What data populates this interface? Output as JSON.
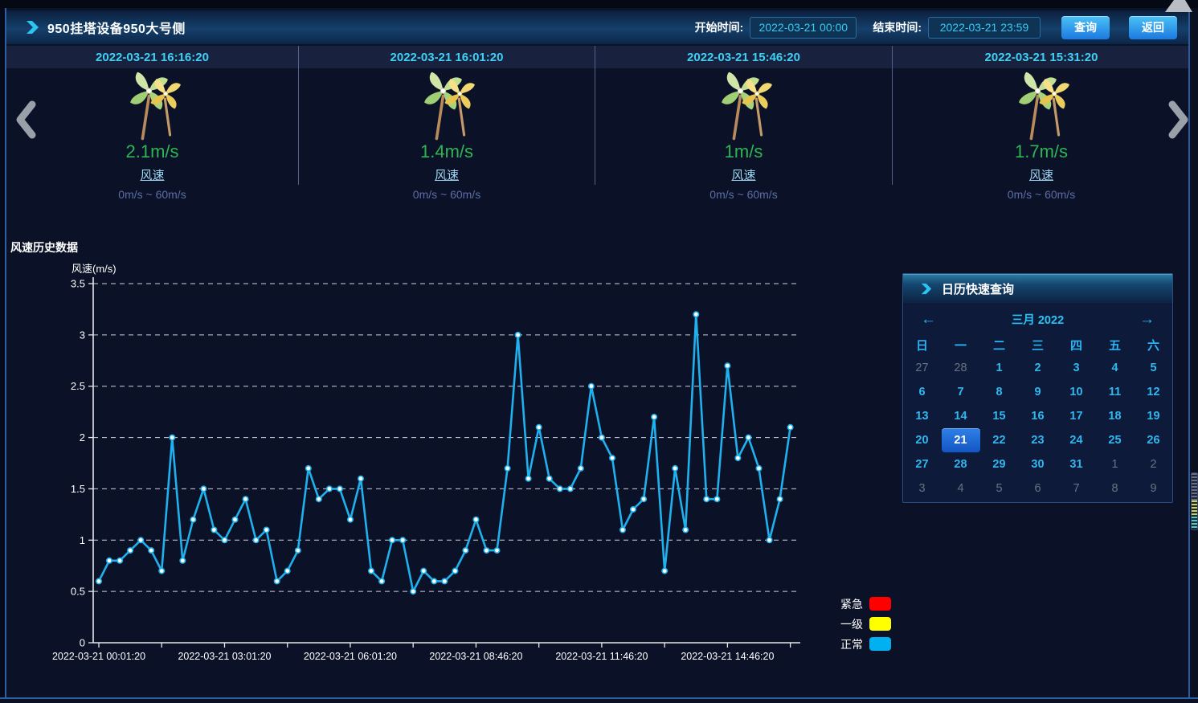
{
  "header": {
    "title": "950挂塔设备950大号侧",
    "start_label": "开始时间:",
    "start_value": "2022-03-21 00:00",
    "end_label": "结束时间:",
    "end_value": "2022-03-21 23:59",
    "query_button": "查询",
    "back_button": "返回"
  },
  "sensors": {
    "label": "风速",
    "range": "0m/s ~ 60m/s",
    "items": [
      {
        "timestamp": "2022-03-21 16:16:20",
        "value": "2.1m/s"
      },
      {
        "timestamp": "2022-03-21 16:01:20",
        "value": "1.4m/s"
      },
      {
        "timestamp": "2022-03-21 15:46:20",
        "value": "1m/s"
      },
      {
        "timestamp": "2022-03-21 15:31:20",
        "value": "1.7m/s"
      }
    ]
  },
  "chart_data": {
    "type": "line",
    "title": "风速历史数据",
    "ylabel": "风速(m/s)",
    "ylim": [
      0,
      3.5
    ],
    "ytick_step": 0.5,
    "grid": "horizontal-dashed",
    "line_color": "#1fb0ee",
    "marker": "white-dot",
    "legend_position": "bottom-right-outside",
    "x_tick_labels": [
      "2022-03-21 00:01:20",
      "2022-03-21 03:01:20",
      "2022-03-21 06:01:20",
      "2022-03-21 08:46:20",
      "2022-03-21 11:46:20",
      "2022-03-21 14:46:20"
    ],
    "x_tick_indices": [
      0,
      12,
      24,
      36,
      48,
      60
    ],
    "values": [
      0.6,
      0.8,
      0.8,
      0.9,
      1.0,
      0.9,
      0.7,
      2.0,
      0.8,
      1.2,
      1.5,
      1.1,
      1.0,
      1.2,
      1.4,
      1.0,
      1.1,
      0.6,
      0.7,
      0.9,
      1.7,
      1.4,
      1.5,
      1.5,
      1.2,
      1.6,
      0.7,
      0.6,
      1.0,
      1.0,
      0.5,
      0.7,
      0.6,
      0.6,
      0.7,
      0.9,
      1.2,
      0.9,
      0.9,
      1.7,
      3.0,
      1.6,
      2.1,
      1.6,
      1.5,
      1.5,
      1.7,
      2.5,
      2.0,
      1.8,
      1.1,
      1.3,
      1.4,
      2.2,
      0.7,
      1.7,
      1.1,
      3.2,
      1.4,
      1.4,
      2.7,
      1.8,
      2.0,
      1.7,
      1.0,
      1.4,
      2.1
    ]
  },
  "legend": {
    "items": [
      {
        "label": "紧急",
        "color": "#ff0000"
      },
      {
        "label": "一级",
        "color": "#ffff00"
      },
      {
        "label": "正常",
        "color": "#00b0f0"
      }
    ]
  },
  "calendar": {
    "title": "日历快速查询",
    "month_title": "三月 2022",
    "prev_arrow": "←",
    "next_arrow": "→",
    "weekdays": [
      "日",
      "一",
      "二",
      "三",
      "四",
      "五",
      "六"
    ],
    "selected_day": "21",
    "days": [
      {
        "label": "27",
        "muted": true
      },
      {
        "label": "28",
        "muted": true
      },
      {
        "label": "1"
      },
      {
        "label": "2"
      },
      {
        "label": "3"
      },
      {
        "label": "4"
      },
      {
        "label": "5"
      },
      {
        "label": "6"
      },
      {
        "label": "7"
      },
      {
        "label": "8"
      },
      {
        "label": "9"
      },
      {
        "label": "10"
      },
      {
        "label": "11"
      },
      {
        "label": "12"
      },
      {
        "label": "13"
      },
      {
        "label": "14"
      },
      {
        "label": "15"
      },
      {
        "label": "16"
      },
      {
        "label": "17"
      },
      {
        "label": "18"
      },
      {
        "label": "19"
      },
      {
        "label": "20"
      },
      {
        "label": "21",
        "selected": true
      },
      {
        "label": "22"
      },
      {
        "label": "23"
      },
      {
        "label": "24"
      },
      {
        "label": "25"
      },
      {
        "label": "26"
      },
      {
        "label": "27"
      },
      {
        "label": "28"
      },
      {
        "label": "29"
      },
      {
        "label": "30"
      },
      {
        "label": "31"
      },
      {
        "label": "1",
        "muted": true
      },
      {
        "label": "2",
        "muted": true
      },
      {
        "label": "3",
        "muted": true
      },
      {
        "label": "4",
        "muted": true
      },
      {
        "label": "5",
        "muted": true
      },
      {
        "label": "6",
        "muted": true
      },
      {
        "label": "7",
        "muted": true
      },
      {
        "label": "8",
        "muted": true
      },
      {
        "label": "9",
        "muted": true
      }
    ]
  }
}
